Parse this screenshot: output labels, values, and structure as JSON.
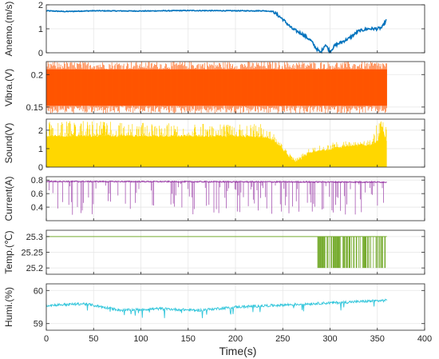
{
  "chart_data": {
    "type": "line",
    "xlabel": "Time(s)",
    "xlim": [
      0,
      400
    ],
    "x_ticks": [
      "0",
      "50",
      "100",
      "150",
      "200",
      "250",
      "300",
      "350",
      "400"
    ],
    "grid": true,
    "panels": [
      {
        "ylabel": "Anemo.(m/s)",
        "color": "#0072BD",
        "ylim": [
          0,
          2
        ],
        "y_ticks": [
          "0",
          "1",
          "2"
        ],
        "series": [
          {
            "x": [
              0,
              20,
              50,
              100,
              150,
              200,
              230,
              240,
              250,
              260,
              270,
              280,
              285,
              290,
              295,
              300,
              305,
              310,
              320,
              330,
              340,
              350,
              355,
              360
            ],
            "y": [
              1.75,
              1.72,
              1.75,
              1.74,
              1.76,
              1.75,
              1.75,
              1.72,
              1.4,
              1.0,
              0.8,
              0.5,
              0.2,
              0.0,
              0.35,
              0.05,
              0.3,
              0.4,
              0.6,
              0.9,
              1.0,
              1.0,
              1.05,
              1.4
            ]
          }
        ]
      },
      {
        "ylabel": "Vibra.(V)",
        "color": "#FF5500",
        "ylim": [
          0.14,
          0.22
        ],
        "y_ticks": [
          "0.15",
          "0.2"
        ],
        "series": [
          {
            "x": [
              0,
              360
            ],
            "band": [
              0.152,
              0.208
            ]
          }
        ]
      },
      {
        "ylabel": "Sound(V)",
        "color": "#FFD700",
        "ylim": [
          0,
          2.6
        ],
        "y_ticks": [
          "0",
          "1",
          "2"
        ],
        "series": [
          {
            "x": [
              0,
              50,
              100,
              150,
              200,
              230,
              238,
              242,
              250,
              258,
              265,
              270,
              278,
              290,
              300,
              310,
              330,
              345,
              350,
              355,
              360
            ],
            "y": [
              1.7,
              1.7,
              1.7,
              1.7,
              1.7,
              1.65,
              1.5,
              1.4,
              1.0,
              0.5,
              0.3,
              0.5,
              0.8,
              0.9,
              1.0,
              1.1,
              1.2,
              1.25,
              1.4,
              2.2,
              1.4
            ],
            "peaks": [
              2.5,
              2.5,
              2.4,
              2.4,
              2.3,
              2.45,
              2.45,
              1.6,
              1.2,
              0.7,
              0.5,
              0.7,
              1.0,
              1.2,
              1.3,
              1.4,
              1.4,
              1.5,
              2.5,
              2.5,
              2.4
            ]
          }
        ]
      },
      {
        "ylabel": "Current(A)",
        "color": "#9B3FA8",
        "ylim": [
          0.2,
          0.85
        ],
        "y_ticks": [
          "0.4",
          "0.6",
          "0.8"
        ],
        "series": [
          {
            "x": [
              0,
              360
            ],
            "y": [
              0.78,
              0.77
            ],
            "dips_to": 0.28
          }
        ]
      },
      {
        "ylabel": "Temp.(℃)",
        "color": "#77AC30",
        "ylim": [
          25.18,
          25.32
        ],
        "y_ticks": [
          "25.2",
          "25.25",
          "25.3"
        ],
        "series": [
          {
            "x": [
              0,
              287,
              360
            ],
            "y": [
              25.3,
              25.3,
              25.3
            ],
            "switch_region": [
              287,
              360
            ],
            "low": 25.2
          }
        ]
      },
      {
        "ylabel": "Humi.(%)",
        "color": "#33C6DB",
        "ylim": [
          58.8,
          60.2
        ],
        "y_ticks": [
          "59",
          "60"
        ],
        "series": [
          {
            "x": [
              0,
              40,
              80,
              120,
              160,
              200,
              240,
              280,
              320,
              360
            ],
            "y": [
              59.55,
              59.6,
              59.4,
              59.45,
              59.4,
              59.5,
              59.55,
              59.6,
              59.65,
              59.7
            ]
          }
        ]
      }
    ]
  }
}
